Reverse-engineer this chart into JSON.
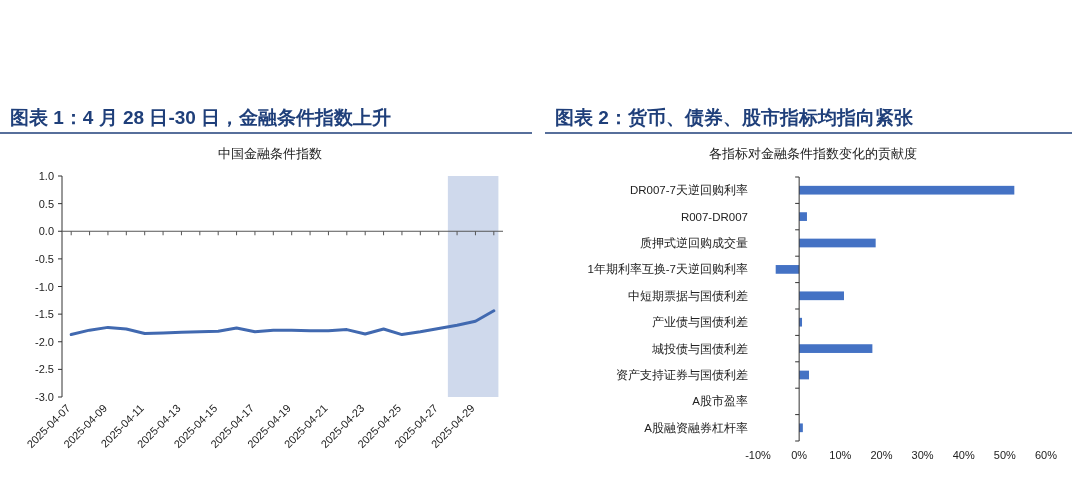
{
  "chart_data": [
    {
      "type": "line",
      "title": "图表 1：4 月 28 日-30 日，金融条件指数上升",
      "subtitle": "中国金融条件指数",
      "x": [
        "2025-04-07",
        "2025-04-08",
        "2025-04-09",
        "2025-04-10",
        "2025-04-11",
        "2025-04-12",
        "2025-04-13",
        "2025-04-14",
        "2025-04-15",
        "2025-04-16",
        "2025-04-17",
        "2025-04-18",
        "2025-04-19",
        "2025-04-20",
        "2025-04-21",
        "2025-04-22",
        "2025-04-23",
        "2025-04-24",
        "2025-04-25",
        "2025-04-26",
        "2025-04-27",
        "2025-04-28",
        "2025-04-29",
        "2025-04-30"
      ],
      "series": [
        {
          "color": "#4169b0",
          "values": [
            -1.87,
            -1.79,
            -1.74,
            -1.77,
            -1.85,
            -1.84,
            -1.83,
            -1.82,
            -1.81,
            -1.75,
            -1.82,
            -1.79,
            -1.79,
            -1.8,
            -1.8,
            -1.78,
            -1.86,
            -1.77,
            -1.87,
            -1.82,
            -1.76,
            -1.7,
            -1.63,
            -1.44
          ]
        }
      ],
      "xlim": [
        "2025-04-06T12:00",
        "2025-04-30T12:00"
      ],
      "xticks": [
        {
          "value": "2025-04-07",
          "label": "2025-04-07"
        },
        {
          "value": "2025-04-08",
          "label": null
        },
        {
          "value": "2025-04-09",
          "label": "2025-04-09"
        },
        {
          "value": "2025-04-10",
          "label": null
        },
        {
          "value": "2025-04-11",
          "label": "2025-04-11"
        },
        {
          "value": "2025-04-12",
          "label": null
        },
        {
          "value": "2025-04-13",
          "label": "2025-04-13"
        },
        {
          "value": "2025-04-14",
          "label": null
        },
        {
          "value": "2025-04-15",
          "label": "2025-04-15"
        },
        {
          "value": "2025-04-16",
          "label": null
        },
        {
          "value": "2025-04-17",
          "label": "2025-04-17"
        },
        {
          "value": "2025-04-18",
          "label": null
        },
        {
          "value": "2025-04-19",
          "label": "2025-04-19"
        },
        {
          "value": "2025-04-20",
          "label": null
        },
        {
          "value": "2025-04-21",
          "label": "2025-04-21"
        },
        {
          "value": "2025-04-22",
          "label": null
        },
        {
          "value": "2025-04-23",
          "label": "2025-04-23"
        },
        {
          "value": "2025-04-24",
          "label": null
        },
        {
          "value": "2025-04-25",
          "label": "2025-04-25"
        },
        {
          "value": "2025-04-26",
          "label": null
        },
        {
          "value": "2025-04-27",
          "label": "2025-04-27"
        },
        {
          "value": "2025-04-28",
          "label": null
        },
        {
          "value": "2025-04-29",
          "label": "2025-04-29"
        },
        {
          "value": "2025-04-30",
          "label": null
        }
      ],
      "ylim": [
        -3,
        1
      ],
      "yticks": [
        {
          "value": 1,
          "label": "1.0"
        },
        {
          "value": 0.5,
          "label": "0.5"
        },
        {
          "value": 0,
          "label": "0.0"
        },
        {
          "value": -0.5,
          "label": "-0.5"
        },
        {
          "value": -1,
          "label": "-1.0"
        },
        {
          "value": -1.5,
          "label": "-1.5"
        },
        {
          "value": -2,
          "label": "-2.0"
        },
        {
          "value": -2.5,
          "label": "-2.5"
        },
        {
          "value": -3,
          "label": "-3.0"
        }
      ],
      "bands": [
        {
          "axis": "x",
          "from": "2025-04-27T12:00",
          "to": "2025-04-30T06:00",
          "color": "#cfd9ec"
        }
      ]
    },
    {
      "type": "bar",
      "orientation": "horizontal",
      "title": "图表 2：货币、债券、股市指标均指向紧张",
      "subtitle": "各指标对金融条件指数变化的贡献度",
      "categories": [
        "DR007-7天逆回购利率",
        "R007-DR007",
        "质押式逆回购成交量",
        "1年期利率互换-7天逆回购利率",
        "中短期票据与国债利差",
        "产业债与国债利差",
        "城投债与国债利差",
        "资产支持证券与国债利差",
        "A股市盈率",
        "A股融资融券杠杆率"
      ],
      "values": [
        52.3,
        1.9,
        18.6,
        -5.7,
        10.9,
        0.7,
        17.8,
        2.4,
        0,
        0.9
      ],
      "color": "#4472c4",
      "xlim": [
        -10,
        60
      ],
      "xticks": [
        {
          "value": -10,
          "label": "-10%"
        },
        {
          "value": 0,
          "label": "0%"
        },
        {
          "value": 10,
          "label": "10%"
        },
        {
          "value": 20,
          "label": "20%"
        },
        {
          "value": 30,
          "label": "30%"
        },
        {
          "value": 40,
          "label": "40%"
        },
        {
          "value": 50,
          "label": "50%"
        },
        {
          "value": 60,
          "label": "60%"
        }
      ]
    }
  ]
}
